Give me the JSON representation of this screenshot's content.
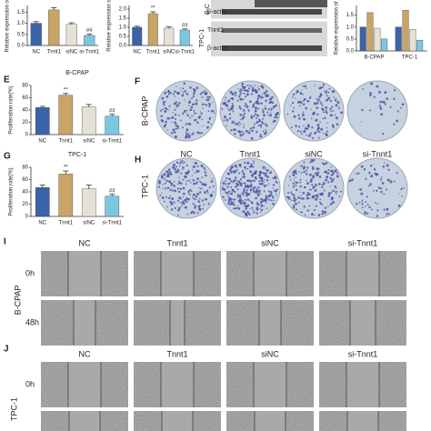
{
  "chart_data": [
    {
      "type": "bar",
      "y_label": "Relative expression of",
      "categories": [
        "NC",
        "Tnnt1",
        "siNC",
        "si-Tnnt1"
      ],
      "values": [
        1.0,
        1.6,
        0.95,
        0.45
      ],
      "errors": [
        0.07,
        0.1,
        0.07,
        0.06
      ],
      "colors": [
        "#3b63a8",
        "#c8a466",
        "#e6e1d6",
        "#7cc7e0"
      ],
      "ylim": [
        0,
        1.8
      ],
      "yticks": [
        {
          "value": 0,
          "label": "0.0"
        },
        {
          "value": 0.5,
          "label": "0.5"
        },
        {
          "value": 1,
          "label": "1.0"
        },
        {
          "value": 1.5,
          "label": "1.5"
        }
      ],
      "annotations": [
        {
          "text": "##",
          "category": "si-Tnnt1"
        }
      ]
    },
    {
      "type": "bar",
      "y_label": "Relative expression o",
      "categories": [
        "NC",
        "Tnnt1",
        "siNC",
        "si-Tnnt1"
      ],
      "values": [
        1.0,
        1.75,
        0.95,
        0.85
      ],
      "errors": [
        0.06,
        0.1,
        0.07,
        0.06
      ],
      "colors": [
        "#3b63a8",
        "#c8a466",
        "#e6e1d6",
        "#7cc7e0"
      ],
      "ylim": [
        0,
        2.2
      ],
      "yticks": [
        {
          "value": 0,
          "label": "0.0"
        },
        {
          "value": 0.5,
          "label": "0.5"
        },
        {
          "value": 1,
          "label": "1.0"
        },
        {
          "value": 1.5,
          "label": "1.5"
        },
        {
          "value": 2,
          "label": "2.0"
        }
      ],
      "annotations": [
        {
          "text": "**",
          "category": "Tnnt1"
        },
        {
          "text": "##",
          "category": "si-Tnnt1"
        }
      ]
    },
    {
      "type": "grouped-bar",
      "y_label": "Relative expression of",
      "categories": [
        "B-CPAP",
        "TPC-1"
      ],
      "series": [
        {
          "color": "#3b63a8",
          "values": [
            1.0,
            1.0
          ]
        },
        {
          "color": "#c8a466",
          "values": [
            1.6,
            1.7
          ]
        },
        {
          "color": "#e6e1d6",
          "values": [
            0.95,
            0.9
          ]
        },
        {
          "color": "#7cc7e0",
          "values": [
            0.5,
            0.45
          ]
        }
      ],
      "ylim": [
        0,
        1.9
      ],
      "yticks": [
        {
          "value": 0,
          "label": "0.0"
        },
        {
          "value": 0.5,
          "label": "0.5"
        },
        {
          "value": 1,
          "label": "1.0"
        },
        {
          "value": 1.5,
          "label": "1.5"
        }
      ]
    },
    {
      "type": "bar",
      "title": "B-CPAP",
      "y_label": "Proliferation rate(%)",
      "categories": [
        "NC",
        "Tnnt1",
        "siNC",
        "si-Tnnt1"
      ],
      "values": [
        44,
        64,
        45,
        30
      ],
      "errors": [
        2,
        3,
        4,
        3
      ],
      "colors": [
        "#3b63a8",
        "#c8a466",
        "#e6e1d6",
        "#7cc7e0"
      ],
      "ylim": [
        0,
        80
      ],
      "yticks": [
        0,
        20,
        40,
        60,
        80
      ],
      "annotations": [
        {
          "text": "**",
          "category": "Tnnt1"
        },
        {
          "text": "##",
          "category": "si-Tnnt1"
        }
      ]
    },
    {
      "type": "bar",
      "title": "TPC-1",
      "y_label": "Proliferation rate(%)",
      "categories": [
        "NC",
        "Tnnt1",
        "siNC",
        "si-Tnnt1"
      ],
      "values": [
        47,
        69,
        45,
        33
      ],
      "errors": [
        4,
        5,
        6,
        3
      ],
      "colors": [
        "#3b63a8",
        "#c8a466",
        "#e6e1d6",
        "#7cc7e0"
      ],
      "ylim": [
        0,
        80
      ],
      "yticks": [
        0,
        20,
        40,
        60,
        80
      ],
      "annotations": [
        {
          "text": "**",
          "category": "Tnnt1"
        },
        {
          "text": "##",
          "category": "si-Tnnt1"
        }
      ]
    }
  ],
  "blot": {
    "cell_top": "B-C",
    "cell_bottom": "TPC-1",
    "rows": [
      "β-actin",
      "Tnnt1",
      "β-actin"
    ]
  },
  "panels": {
    "E": "E",
    "G": "G",
    "F": {
      "label": "F",
      "row_label": "B-CPAP"
    },
    "H": {
      "label": "H",
      "row_label": "TPC-1",
      "columns": [
        "NC",
        "Tnnt1",
        "siNC",
        "si-Tnnt1"
      ]
    },
    "I": {
      "label": "I",
      "row_label": "B-CPAP",
      "columns": [
        "NC",
        "Tnnt1",
        "siNC",
        "si-Tnnt1"
      ],
      "times": [
        "0h",
        "48h"
      ]
    },
    "J": {
      "label": "J",
      "row_label": "TPC-1",
      "columns": [
        "NC",
        "Tnnt1",
        "siNC",
        "si-Tnnt1"
      ],
      "times": [
        "0h"
      ]
    }
  }
}
